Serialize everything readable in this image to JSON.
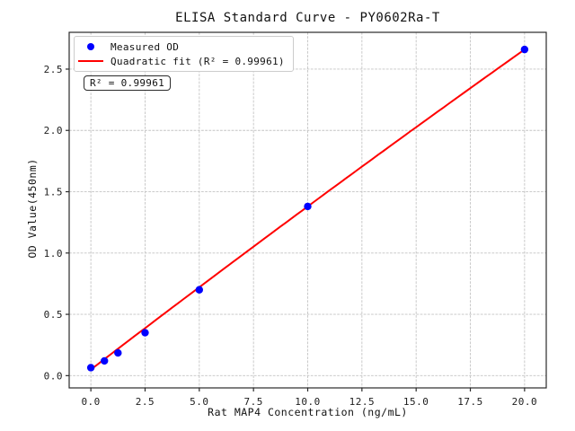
{
  "chart_data": {
    "type": "scatter",
    "title": "ELISA Standard Curve - PY0602Ra-T",
    "xlabel": "Rat MAP4 Concentration (ng/mL)",
    "ylabel": "OD Value(450nm)",
    "xlim": [
      -1,
      21
    ],
    "ylim": [
      -0.1,
      2.8
    ],
    "grid": true,
    "x_ticks": {
      "values": [
        0,
        2.5,
        5,
        7.5,
        10,
        12.5,
        15,
        17.5,
        20
      ],
      "labels": [
        "0.0",
        "2.5",
        "5.0",
        "7.5",
        "10.0",
        "12.5",
        "15.0",
        "17.5",
        "20.0"
      ]
    },
    "y_ticks": {
      "values": [
        0,
        0.5,
        1.0,
        1.5,
        2.0,
        2.5
      ],
      "labels": [
        "0.0",
        "0.5",
        "1.0",
        "1.5",
        "2.0",
        "2.5"
      ]
    },
    "series": [
      {
        "name": "Measured OD",
        "type": "scatter",
        "marker": "circle",
        "color": "#0000ff",
        "points": [
          [
            0,
            0.065
          ],
          [
            0.625,
            0.12
          ],
          [
            1.25,
            0.185
          ],
          [
            2.5,
            0.35
          ],
          [
            5,
            0.7
          ],
          [
            10,
            1.38
          ],
          [
            20,
            2.66
          ]
        ]
      },
      {
        "name": "Quadratic fit (R² = 0.99961)",
        "type": "line",
        "color": "#ff0000",
        "fit_coefficients": {
          "intercept": 0.05,
          "linear": 0.1355,
          "quadratic": -0.00025
        },
        "x_range": [
          0,
          20
        ]
      }
    ],
    "legend": {
      "position": "upper left",
      "items": [
        {
          "label": "Measured OD",
          "marker": "circle",
          "color": "#0000ff"
        },
        {
          "label": "Quadratic fit (R² = 0.99961)",
          "marker": "line",
          "color": "#ff0000"
        }
      ]
    },
    "annotation": {
      "text": "R² = 0.99961"
    },
    "r_squared": 0.99961,
    "colors": {
      "grid": "#c4c4c4",
      "spine": "#2a2a2a",
      "tick": "#2a2a2a",
      "text": "#111111"
    }
  }
}
